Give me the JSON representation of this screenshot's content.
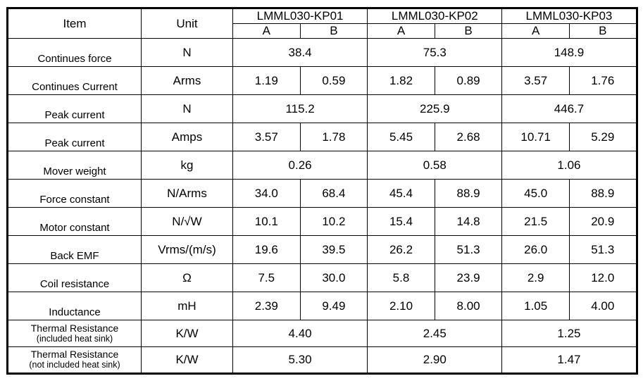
{
  "header": {
    "item": "Item",
    "unit": "Unit",
    "models": [
      "LMML030-KP01",
      "LMML030-KP02",
      "LMML030-KP03"
    ],
    "sub": [
      "A",
      "B",
      "A",
      "B",
      "A",
      "B"
    ]
  },
  "rows": [
    {
      "item": "Continues force",
      "unit": "N",
      "merged": true,
      "values": [
        "38.4",
        "75.3",
        "148.9"
      ]
    },
    {
      "item": "Continues Current",
      "unit": "Arms",
      "merged": false,
      "values": [
        "1.19",
        "0.59",
        "1.82",
        "0.89",
        "3.57",
        "1.76"
      ]
    },
    {
      "item": "Peak current",
      "unit": "N",
      "merged": true,
      "values": [
        "115.2",
        "225.9",
        "446.7"
      ]
    },
    {
      "item": "Peak current",
      "unit": "Amps",
      "merged": false,
      "values": [
        "3.57",
        "1.78",
        "5.45",
        "2.68",
        "10.71",
        "5.29"
      ]
    },
    {
      "item": "Mover weight",
      "unit": "kg",
      "merged": true,
      "values": [
        "0.26",
        "0.58",
        "1.06"
      ]
    },
    {
      "item": "Force constant",
      "unit": "N/Arms",
      "merged": false,
      "values": [
        "34.0",
        "68.4",
        "45.4",
        "88.9",
        "45.0",
        "88.9"
      ]
    },
    {
      "item": "Motor constant",
      "unit": "N/√W",
      "merged": false,
      "values": [
        "10.1",
        "10.2",
        "15.4",
        "14.8",
        "21.5",
        "20.9"
      ]
    },
    {
      "item": "Back EMF",
      "unit": "Vrms/(m/s)",
      "merged": false,
      "values": [
        "19.6",
        "39.5",
        "26.2",
        "51.3",
        "26.0",
        "51.3"
      ]
    },
    {
      "item": "Coil resistance",
      "unit": "Ω",
      "merged": false,
      "values": [
        "7.5",
        "30.0",
        "5.8",
        "23.9",
        "2.9",
        "12.0"
      ]
    },
    {
      "item": "Inductance",
      "unit": "mH",
      "merged": false,
      "values": [
        "2.39",
        "9.49",
        "2.10",
        "8.00",
        "1.05",
        "4.00"
      ]
    },
    {
      "item": "Thermal Resistance",
      "item_sub": "(included heat sink)",
      "unit": "K/W",
      "merged": true,
      "values": [
        "4.40",
        "2.45",
        "1.25"
      ]
    },
    {
      "item": "Thermal Resistance",
      "item_sub": "(not included heat sink)",
      "unit": "K/W",
      "merged": true,
      "values": [
        "5.30",
        "2.90",
        "1.47"
      ]
    }
  ]
}
